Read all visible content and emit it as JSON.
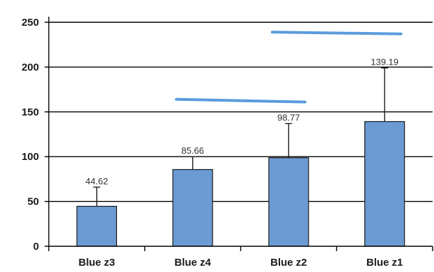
{
  "chart_data": {
    "type": "bar",
    "categories": [
      "Blue z3",
      "Blue z4",
      "Blue z2",
      "Blue z1"
    ],
    "values": [
      44.62,
      85.66,
      98.77,
      139.19
    ],
    "value_labels": [
      "44.62",
      "85.66",
      "98.77",
      "139.19"
    ],
    "error_upper": [
      66,
      100,
      137,
      199
    ],
    "ylim": [
      0,
      250
    ],
    "yticks": [
      0,
      50,
      100,
      150,
      200,
      250
    ],
    "title": "",
    "xlabel": "",
    "ylabel": "",
    "grid": true,
    "legend": "none",
    "significance_lines": [
      {
        "from_category": "Blue z4",
        "to_category": "Blue z2",
        "y_start": 164,
        "y_end": 161
      },
      {
        "from_category": "Blue z2",
        "to_category": "Blue z1",
        "y_start": 239,
        "y_end": 237
      }
    ],
    "colors": {
      "bar": "#6b9bd2",
      "significance_line": "#5b9bdc",
      "grid": "#000000"
    }
  }
}
